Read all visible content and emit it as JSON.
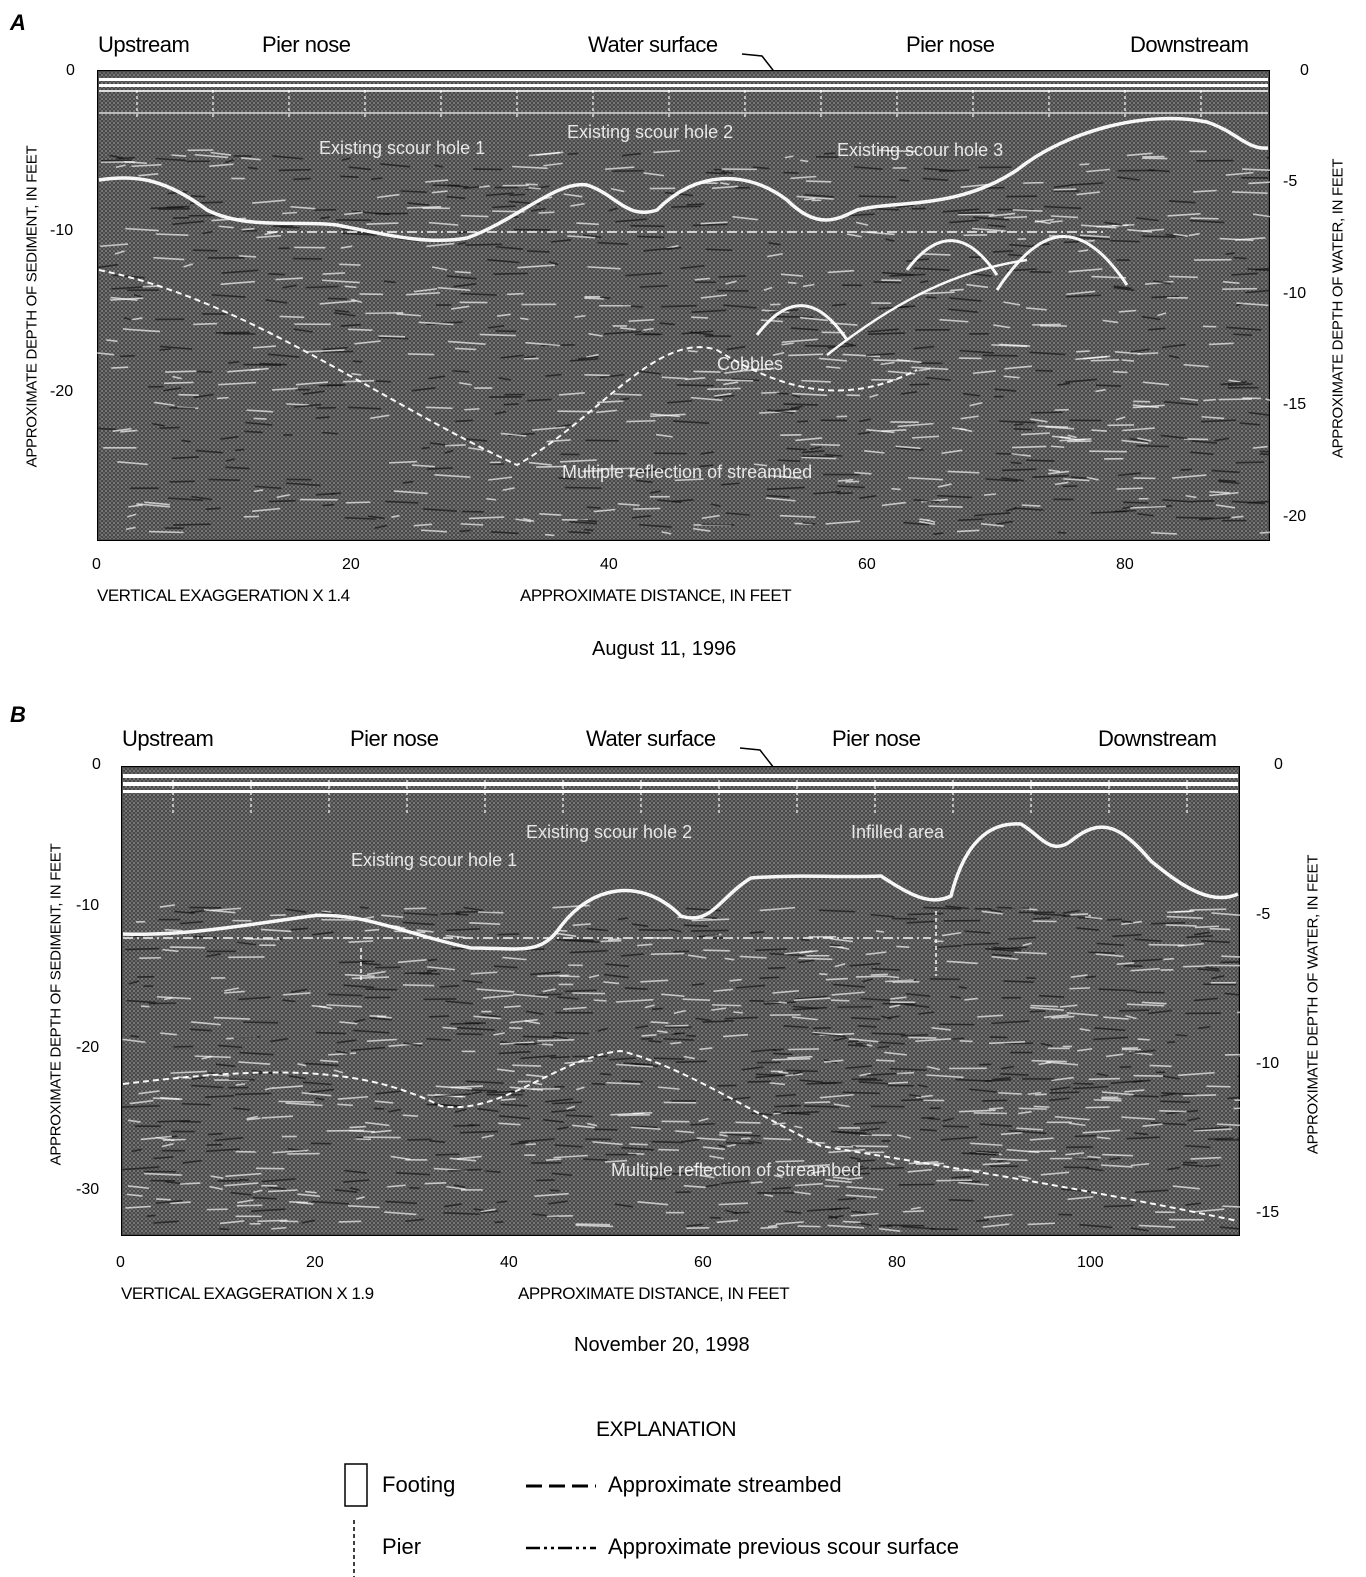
{
  "panels": [
    {
      "letter": "A",
      "labels": {
        "upstream": "Upstream",
        "pier_nose_left": "Pier nose",
        "water_surface": "Water surface",
        "pier_nose_right": "Pier nose",
        "downstream": "Downstream"
      },
      "left_axis": {
        "title": "APPROXIMATE DEPTH OF SEDIMENT, IN FEET",
        "ticks": [
          "0",
          "-10",
          "-20"
        ]
      },
      "right_axis": {
        "title": "APPROXIMATE DEPTH OF WATER, IN FEET",
        "ticks": [
          "0",
          "-5",
          "-10",
          "-15",
          "-20"
        ]
      },
      "x_axis": {
        "title": "APPROXIMATE DISTANCE, IN FEET",
        "ticks": [
          "0",
          "20",
          "40",
          "60",
          "80"
        ]
      },
      "exaggeration": "VERTICAL EXAGGERATION X 1.4",
      "date": "August 11, 1996",
      "annotations": [
        "Existing scour hole 1",
        "Existing scour hole 2",
        "Existing scour hole 3",
        "Cobbles",
        "Multiple reflection of streambed"
      ]
    },
    {
      "letter": "B",
      "labels": {
        "upstream": "Upstream",
        "pier_nose_left": "Pier nose",
        "water_surface": "Water surface",
        "pier_nose_right": "Pier nose",
        "downstream": "Downstream"
      },
      "left_axis": {
        "title": "APPROXIMATE DEPTH OF SEDIMENT, IN FEET",
        "ticks": [
          "0",
          "-10",
          "-20",
          "-30"
        ]
      },
      "right_axis": {
        "title": "APPROXIMATE DEPTH OF WATER, IN FEET",
        "ticks": [
          "0",
          "-5",
          "-10",
          "-15"
        ]
      },
      "x_axis": {
        "title": "APPROXIMATE DISTANCE, IN FEET",
        "ticks": [
          "0",
          "20",
          "40",
          "60",
          "80",
          "100"
        ]
      },
      "exaggeration": "VERTICAL EXAGGERATION X 1.9",
      "date": "November 20, 1998",
      "annotations": [
        "Existing scour hole 1",
        "Existing scour hole 2",
        "Infilled area",
        "Multiple reflection of streambed"
      ]
    }
  ],
  "explanation": {
    "title": "EXPLANATION",
    "items": [
      {
        "symbol": "footing",
        "label": "Footing"
      },
      {
        "symbol": "dashed-line",
        "label": "Approximate streambed"
      },
      {
        "symbol": "pier-line",
        "label": "Pier"
      },
      {
        "symbol": "dash-dot-line",
        "label": "Approximate previous scour surface"
      }
    ]
  },
  "colors": {
    "radar_bg": "#4a4a4a",
    "reflector": "#ffffff",
    "annotation": "#ffffff"
  }
}
